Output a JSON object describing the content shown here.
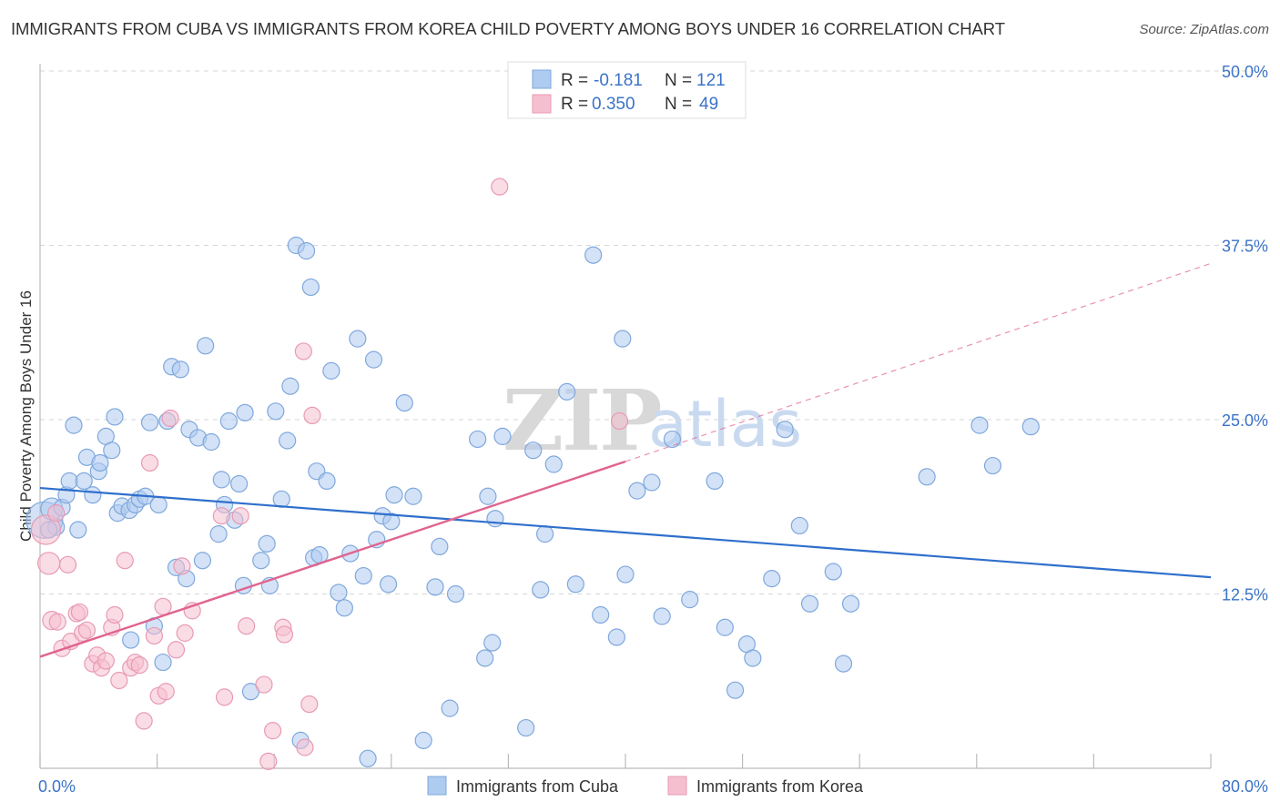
{
  "title": "IMMIGRANTS FROM CUBA VS IMMIGRANTS FROM KOREA CHILD POVERTY AMONG BOYS UNDER 16 CORRELATION CHART",
  "source": "Source: ZipAtlas.com",
  "watermark": {
    "zip": "ZIP",
    "atlas": "atlas"
  },
  "colors": {
    "cuba_fill": "#aecbf0",
    "cuba_stroke": "#7fa8dc",
    "cuba_line": "#2f6fcc",
    "korea_fill": "#f6bfd0",
    "korea_stroke": "#e89ab4",
    "korea_line": "#e0648f",
    "grid": "#d6d6d6",
    "axis_text": "#3b73c8"
  },
  "legend": {
    "rows": [
      {
        "r_label": "R = ",
        "r_value": "-0.181",
        "n_label": "N = ",
        "n_value": "121"
      },
      {
        "r_label": "R = ",
        "r_value": "0.350",
        "n_label": "N = ",
        "n_value": "49"
      }
    ]
  },
  "chart_data": {
    "type": "scatter",
    "title": "IMMIGRANTS FROM CUBA VS IMMIGRANTS FROM KOREA CHILD POVERTY AMONG BOYS UNDER 16 CORRELATION CHART",
    "xlabel": "",
    "ylabel": "Child Poverty Among Boys Under 16",
    "xlim": [
      0,
      80
    ],
    "ylim": [
      0,
      50
    ],
    "x_tick_labels": [
      "0.0%",
      "80.0%"
    ],
    "y_ticks": [
      12.5,
      25.0,
      37.5,
      50.0
    ],
    "y_tick_labels": [
      "12.5%",
      "25.0%",
      "37.5%",
      "50.0%"
    ],
    "grid": true,
    "legend_position": "top-center",
    "series": [
      {
        "name": "Immigrants from Cuba",
        "r": -0.181,
        "n": 121,
        "trend": {
          "x": [
            0,
            80
          ],
          "y": [
            20.1,
            13.7
          ],
          "style": "solid"
        },
        "points": [
          [
            0.3,
            17.8,
            20
          ],
          [
            0.8,
            18.6,
            12
          ],
          [
            1.1,
            17.3,
            9
          ],
          [
            1.5,
            18.7,
            9
          ],
          [
            1.8,
            19.6,
            9
          ],
          [
            2.0,
            20.6,
            9
          ],
          [
            2.3,
            24.6,
            9
          ],
          [
            2.6,
            17.1,
            9
          ],
          [
            3.0,
            20.6,
            9
          ],
          [
            3.2,
            22.3,
            9
          ],
          [
            3.6,
            19.6,
            9
          ],
          [
            4.0,
            21.3,
            9
          ],
          [
            4.1,
            21.9,
            9
          ],
          [
            4.5,
            23.8,
            9
          ],
          [
            4.9,
            22.8,
            9
          ],
          [
            5.1,
            25.2,
            9
          ],
          [
            5.3,
            18.3,
            9
          ],
          [
            5.6,
            18.8,
            9
          ],
          [
            6.1,
            18.5,
            9
          ],
          [
            6.2,
            9.2,
            9
          ],
          [
            6.5,
            18.9,
            9
          ],
          [
            6.8,
            19.3,
            9
          ],
          [
            7.2,
            19.5,
            9
          ],
          [
            7.5,
            24.8,
            9
          ],
          [
            7.8,
            10.2,
            9
          ],
          [
            8.1,
            18.9,
            9
          ],
          [
            8.4,
            7.6,
            9
          ],
          [
            8.7,
            24.9,
            9
          ],
          [
            9.0,
            28.8,
            9
          ],
          [
            9.3,
            14.4,
            9
          ],
          [
            9.6,
            28.6,
            9
          ],
          [
            10.0,
            13.6,
            9
          ],
          [
            10.2,
            24.3,
            9
          ],
          [
            10.8,
            23.7,
            9
          ],
          [
            11.1,
            14.9,
            9
          ],
          [
            11.3,
            30.3,
            9
          ],
          [
            11.7,
            23.4,
            9
          ],
          [
            12.2,
            16.8,
            9
          ],
          [
            12.4,
            20.7,
            9
          ],
          [
            12.6,
            18.9,
            9
          ],
          [
            12.9,
            24.9,
            9
          ],
          [
            13.3,
            17.8,
            9
          ],
          [
            13.6,
            20.4,
            9
          ],
          [
            13.9,
            13.1,
            9
          ],
          [
            14.0,
            25.5,
            9
          ],
          [
            14.4,
            5.5,
            9
          ],
          [
            15.1,
            14.9,
            9
          ],
          [
            15.5,
            16.1,
            9
          ],
          [
            15.7,
            13.1,
            9
          ],
          [
            16.1,
            25.6,
            9
          ],
          [
            16.5,
            19.3,
            9
          ],
          [
            16.9,
            23.5,
            9
          ],
          [
            17.1,
            27.4,
            9
          ],
          [
            17.5,
            37.5,
            9
          ],
          [
            17.8,
            2.0,
            9
          ],
          [
            18.2,
            37.1,
            9
          ],
          [
            18.5,
            34.5,
            9
          ],
          [
            18.7,
            15.1,
            9
          ],
          [
            18.9,
            21.3,
            9
          ],
          [
            19.1,
            15.3,
            9
          ],
          [
            19.6,
            20.6,
            9
          ],
          [
            19.9,
            28.5,
            9
          ],
          [
            20.4,
            12.6,
            9
          ],
          [
            20.8,
            11.5,
            9
          ],
          [
            21.2,
            15.4,
            9
          ],
          [
            21.7,
            30.8,
            9
          ],
          [
            22.1,
            13.8,
            9
          ],
          [
            22.4,
            0.7,
            9
          ],
          [
            22.8,
            29.3,
            9
          ],
          [
            23.0,
            16.4,
            9
          ],
          [
            23.4,
            18.1,
            9
          ],
          [
            23.8,
            13.2,
            9
          ],
          [
            24.0,
            17.7,
            9
          ],
          [
            24.2,
            19.6,
            9
          ],
          [
            24.9,
            26.2,
            9
          ],
          [
            25.5,
            19.5,
            9
          ],
          [
            26.2,
            2.0,
            9
          ],
          [
            27.0,
            13.0,
            9
          ],
          [
            27.3,
            15.9,
            9
          ],
          [
            28.0,
            4.3,
            9
          ],
          [
            28.4,
            12.5,
            9
          ],
          [
            29.9,
            23.6,
            9
          ],
          [
            30.4,
            7.9,
            9
          ],
          [
            30.6,
            19.5,
            9
          ],
          [
            30.9,
            9.0,
            9
          ],
          [
            31.6,
            23.8,
            9
          ],
          [
            31.1,
            17.9,
            9
          ],
          [
            33.2,
            2.9,
            9
          ],
          [
            33.7,
            22.8,
            9
          ],
          [
            34.2,
            12.8,
            9
          ],
          [
            34.5,
            16.8,
            9
          ],
          [
            35.1,
            21.8,
            9
          ],
          [
            36.0,
            27.0,
            9
          ],
          [
            36.6,
            13.2,
            9
          ],
          [
            37.8,
            36.8,
            9
          ],
          [
            38.3,
            11.0,
            9
          ],
          [
            39.4,
            9.4,
            9
          ],
          [
            39.8,
            30.8,
            9
          ],
          [
            40.0,
            13.9,
            9
          ],
          [
            40.8,
            19.9,
            9
          ],
          [
            41.8,
            20.5,
            9
          ],
          [
            42.5,
            10.9,
            9
          ],
          [
            43.2,
            23.6,
            9
          ],
          [
            44.4,
            12.1,
            9
          ],
          [
            46.1,
            20.6,
            9
          ],
          [
            46.8,
            10.1,
            9
          ],
          [
            47.5,
            5.6,
            9
          ],
          [
            48.3,
            8.9,
            9
          ],
          [
            48.7,
            7.9,
            9
          ],
          [
            50.0,
            13.6,
            9
          ],
          [
            50.9,
            24.3,
            9
          ],
          [
            51.9,
            17.4,
            9
          ],
          [
            52.6,
            11.8,
            9
          ],
          [
            54.2,
            14.1,
            9
          ],
          [
            54.9,
            7.5,
            9
          ],
          [
            55.4,
            11.8,
            9
          ],
          [
            60.6,
            20.9,
            9
          ],
          [
            64.2,
            24.6,
            9
          ],
          [
            65.1,
            21.7,
            9
          ],
          [
            67.7,
            24.5,
            9
          ],
          [
            0.6,
            17.1,
            9
          ]
        ]
      },
      {
        "name": "Immigrants from Korea",
        "r": 0.35,
        "n": 49,
        "trend": {
          "x": [
            0,
            40
          ],
          "y": [
            8.0,
            22.0
          ],
          "style": "solid",
          "extended_to": [
            80,
            36.2
          ],
          "extended_style": "dashed"
        },
        "points": [
          [
            0.4,
            17.1,
            16
          ],
          [
            0.6,
            14.7,
            12
          ],
          [
            0.8,
            10.6,
            10
          ],
          [
            1.1,
            18.3,
            9
          ],
          [
            1.2,
            10.5,
            9
          ],
          [
            1.5,
            8.6,
            9
          ],
          [
            1.9,
            14.6,
            9
          ],
          [
            2.1,
            9.1,
            9
          ],
          [
            2.5,
            11.1,
            9
          ],
          [
            2.7,
            11.2,
            9
          ],
          [
            2.9,
            9.7,
            9
          ],
          [
            3.2,
            9.9,
            9
          ],
          [
            3.6,
            7.5,
            9
          ],
          [
            3.9,
            8.1,
            9
          ],
          [
            4.2,
            7.2,
            9
          ],
          [
            4.5,
            7.7,
            9
          ],
          [
            4.9,
            10.1,
            9
          ],
          [
            5.1,
            11.0,
            9
          ],
          [
            5.4,
            6.3,
            9
          ],
          [
            5.8,
            14.9,
            9
          ],
          [
            6.2,
            7.2,
            9
          ],
          [
            6.5,
            7.6,
            9
          ],
          [
            6.8,
            7.4,
            9
          ],
          [
            7.1,
            3.4,
            9
          ],
          [
            7.5,
            21.9,
            9
          ],
          [
            7.8,
            9.5,
            9
          ],
          [
            8.1,
            5.2,
            9
          ],
          [
            8.4,
            11.6,
            9
          ],
          [
            8.6,
            5.5,
            9
          ],
          [
            8.9,
            25.1,
            9
          ],
          [
            9.3,
            8.5,
            9
          ],
          [
            9.7,
            14.5,
            9
          ],
          [
            9.9,
            9.7,
            9
          ],
          [
            10.4,
            11.3,
            9
          ],
          [
            12.4,
            18.1,
            9
          ],
          [
            12.6,
            5.1,
            9
          ],
          [
            13.7,
            18.1,
            9
          ],
          [
            14.1,
            10.2,
            9
          ],
          [
            15.3,
            6.0,
            9
          ],
          [
            15.6,
            0.5,
            9
          ],
          [
            15.9,
            2.7,
            9
          ],
          [
            16.6,
            10.1,
            9
          ],
          [
            16.7,
            9.6,
            9
          ],
          [
            18.1,
            1.5,
            9
          ],
          [
            18.4,
            4.6,
            9
          ],
          [
            18.0,
            29.9,
            9
          ],
          [
            18.6,
            25.3,
            9
          ],
          [
            31.4,
            41.7,
            9
          ],
          [
            39.6,
            24.9,
            9
          ]
        ]
      }
    ]
  },
  "bottom_legend": [
    "Immigrants from Cuba",
    "Immigrants from Korea"
  ]
}
